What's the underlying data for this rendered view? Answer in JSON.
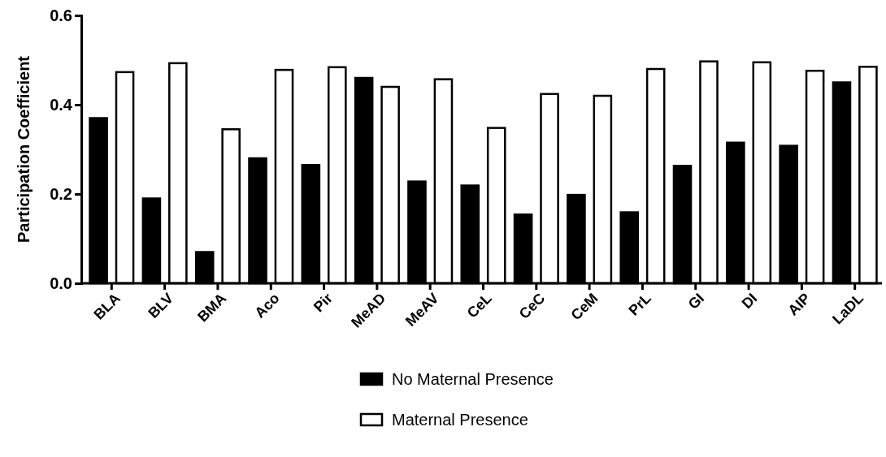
{
  "chart_data": {
    "type": "bar",
    "ylabel": "Participation Coefficient",
    "categories": [
      "BLA",
      "BLV",
      "BMA",
      "Aco",
      "Pir",
      "MeAD",
      "MeAV",
      "CeL",
      "CeC",
      "CeM",
      "PrL",
      "GI",
      "DI",
      "AIP",
      "LaDL"
    ],
    "series": [
      {
        "name": "No Maternal Presence",
        "color": "#000000",
        "values": [
          0.37,
          0.19,
          0.07,
          0.28,
          0.265,
          0.46,
          0.228,
          0.219,
          0.154,
          0.198,
          0.159,
          0.263,
          0.315,
          0.308,
          0.45
        ]
      },
      {
        "name": "Maternal Presence",
        "color": "#ffffff",
        "values": [
          0.473,
          0.493,
          0.345,
          0.478,
          0.484,
          0.44,
          0.457,
          0.348,
          0.424,
          0.42,
          0.48,
          0.497,
          0.495,
          0.476,
          0.485
        ]
      }
    ],
    "ylim": [
      0,
      0.6
    ],
    "yticks": [
      {
        "value": 0,
        "label": "0.0"
      },
      {
        "value": 0.2,
        "label": "0.2"
      },
      {
        "value": 0.4,
        "label": "0.4"
      },
      {
        "value": 0.6,
        "label": "0.6"
      }
    ],
    "grid": false,
    "legend": "bottom"
  }
}
